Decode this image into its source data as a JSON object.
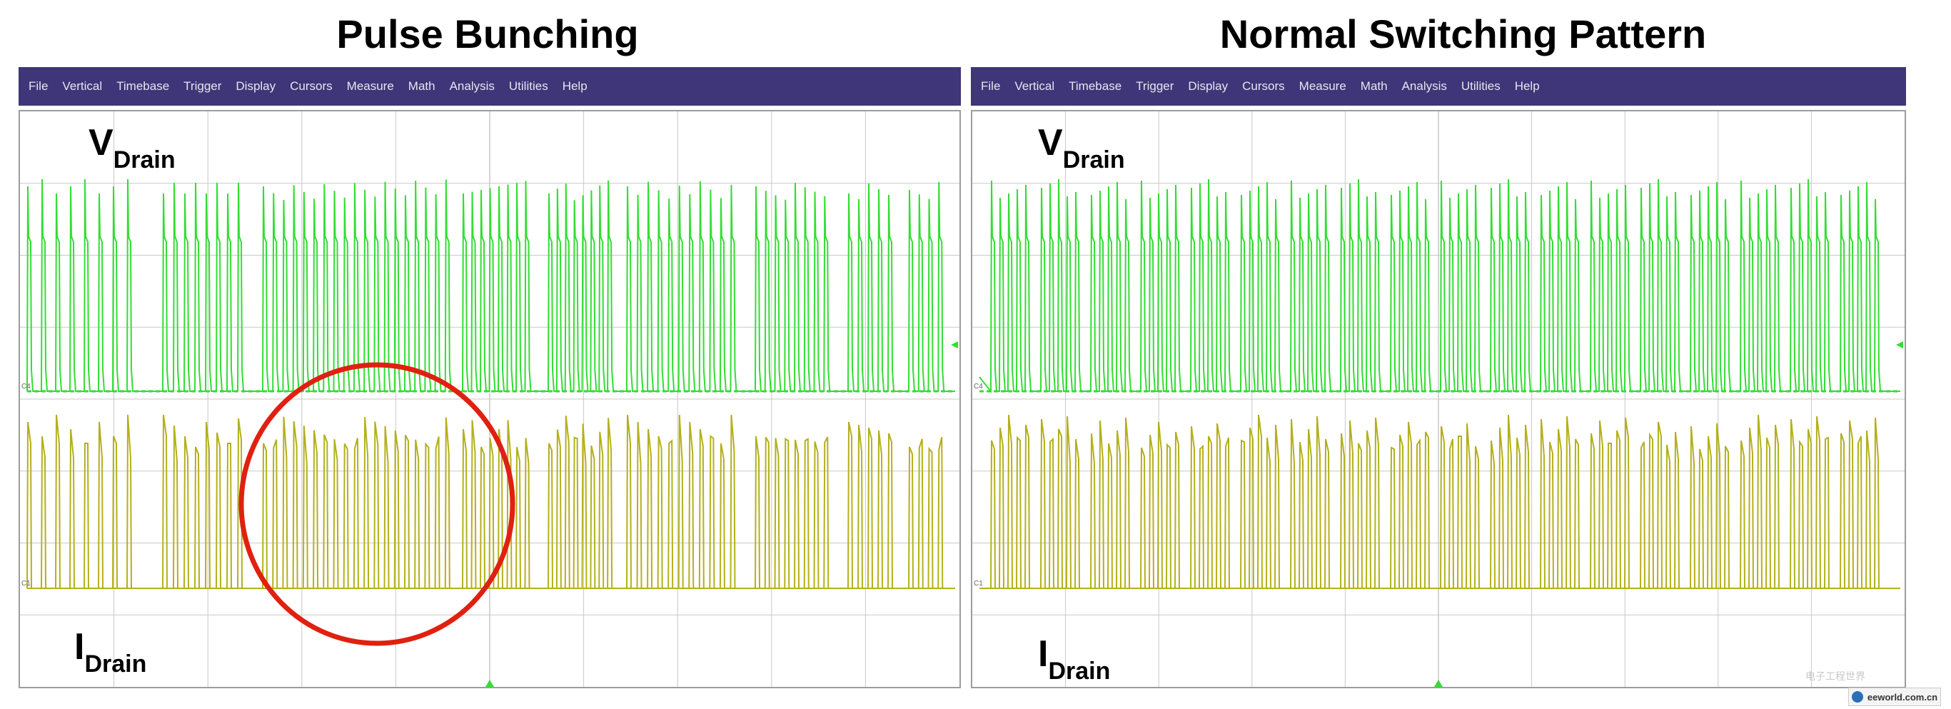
{
  "panels": [
    {
      "id": "left",
      "title": "Pulse Bunching",
      "menu": [
        "File",
        "Vertical",
        "Timebase",
        "Trigger",
        "Display",
        "Cursors",
        "Measure",
        "Math",
        "Analysis",
        "Utilities",
        "Help"
      ],
      "ch4_marker": "C4",
      "ch1_marker": "C1",
      "vlabel_main": "V",
      "vlabel_sub": "Drain",
      "ilabel_main": "I",
      "ilabel_sub": "Drain",
      "pattern": "bunching",
      "highlight": true
    },
    {
      "id": "right",
      "title": "Normal Switching Pattern",
      "menu": [
        "File",
        "Vertical",
        "Timebase",
        "Trigger",
        "Display",
        "Cursors",
        "Measure",
        "Math",
        "Analysis",
        "Utilities",
        "Help"
      ],
      "ch4_marker": "C4",
      "ch1_marker": "C1",
      "vlabel_main": "V",
      "vlabel_sub": "Drain",
      "ilabel_main": "I",
      "ilabel_sub": "Drain",
      "pattern": "normal",
      "highlight": false
    }
  ],
  "watermark": "电子工程世界",
  "badge_text": "eeworld.com.cn",
  "colors": {
    "menubar": "#3e3678",
    "vdrain_trace": "#33dd33",
    "idrain_trace": "#b4b01c",
    "highlight_circle": "#e02010",
    "grid": "#c8c8c8"
  }
}
